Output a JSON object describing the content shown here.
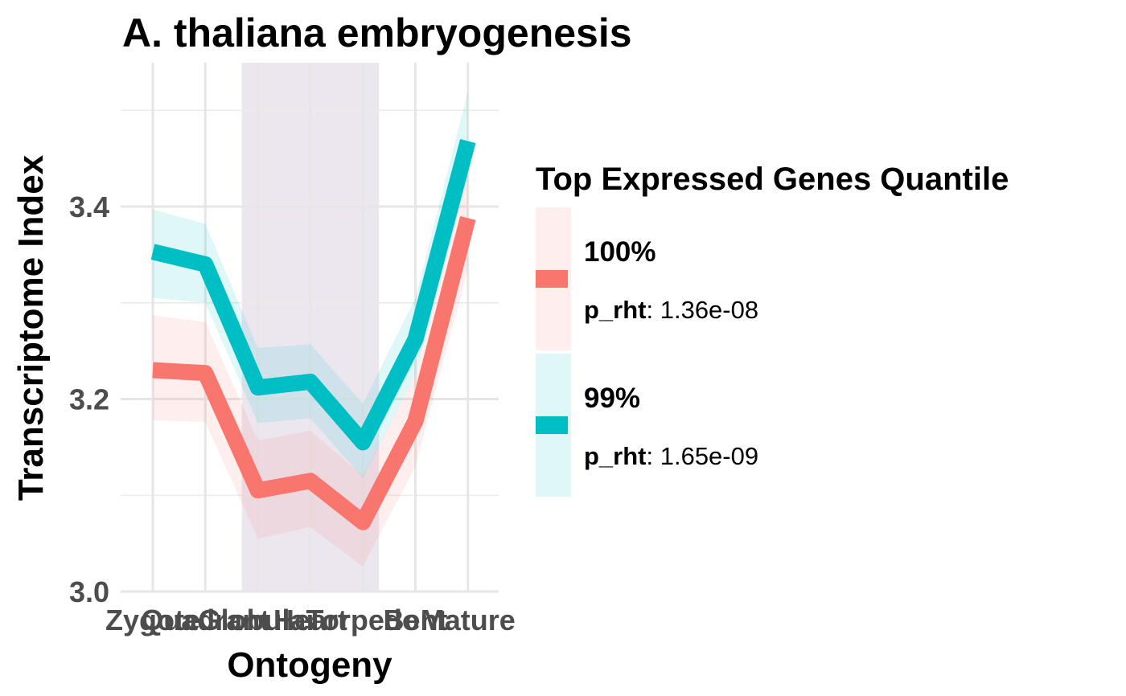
{
  "chart_data": {
    "type": "line",
    "title": "A. thaliana embryogenesis",
    "xlabel": "Ontogeny",
    "ylabel": "Transcriptome Index",
    "categories": [
      "Zygote",
      "Quadrant",
      "Globular",
      "Heart",
      "Torpedo",
      "Bent",
      "Mature"
    ],
    "ylim": [
      3.0,
      3.52
    ],
    "yticks": [
      "3.0",
      "3.2",
      "3.4"
    ],
    "ytick_values": [
      3.0,
      3.2,
      3.4
    ],
    "grid": true,
    "highlight_region": {
      "from": "Globular",
      "to": "Torpedo",
      "color": "#6a3d80"
    },
    "series": [
      {
        "name": "100%",
        "color": "#F8766D",
        "values": [
          3.23,
          3.227,
          3.105,
          3.115,
          3.072,
          3.177,
          3.388
        ],
        "lower": [
          3.178,
          3.176,
          3.055,
          3.067,
          3.026,
          3.13,
          3.335
        ],
        "upper": [
          3.287,
          3.28,
          3.157,
          3.167,
          3.12,
          3.225,
          3.44
        ]
      },
      {
        "name": "99%",
        "color": "#00BFC4",
        "values": [
          3.353,
          3.34,
          3.212,
          3.218,
          3.155,
          3.262,
          3.468
        ],
        "lower": [
          3.305,
          3.3,
          3.175,
          3.18,
          3.118,
          3.225,
          3.43
        ],
        "upper": [
          3.397,
          3.382,
          3.253,
          3.257,
          3.195,
          3.305,
          3.52
        ]
      }
    ],
    "legend": {
      "title": "Top Expressed Genes Quantile",
      "position": "right",
      "entries": [
        {
          "label": "100%",
          "stat_name": "p_rht",
          "stat_value": ": 1.36e-08",
          "color": "#F8766D"
        },
        {
          "label": "99%",
          "stat_name": "p_rht",
          "stat_value": ": 1.65e-09",
          "color": "#00BFC4"
        }
      ]
    }
  }
}
